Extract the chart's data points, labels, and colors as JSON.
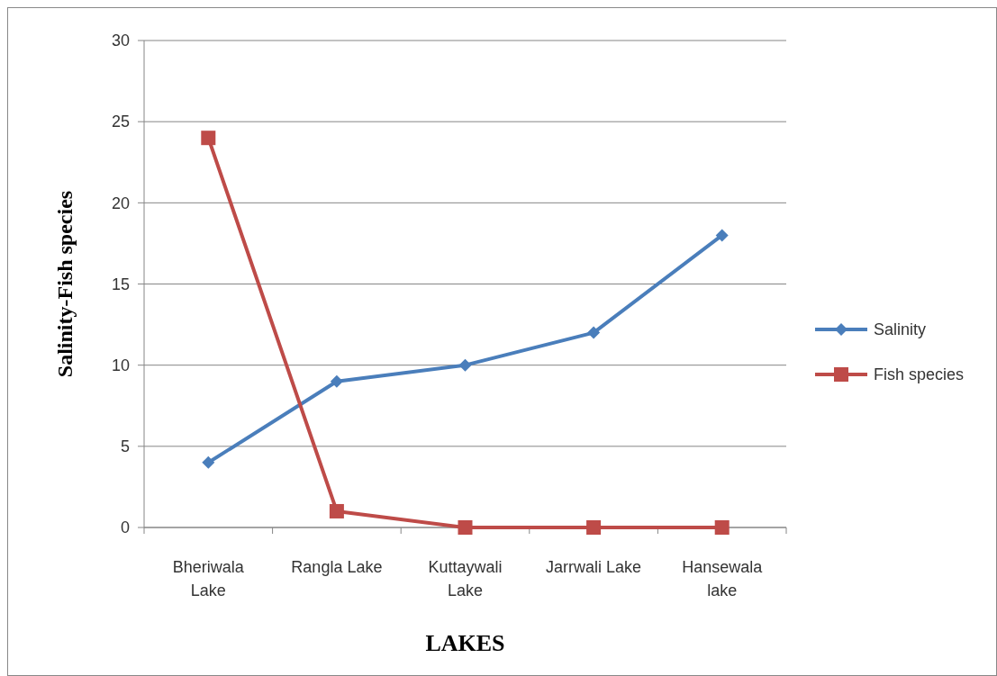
{
  "chart_data": {
    "type": "line",
    "xlabel": "LAKES",
    "ylabel": "Salinity-Fish species",
    "categories": [
      "Bheriwala Lake",
      "Rangla Lake",
      "Kuttaywali Lake",
      "Jarrwali Lake",
      "Hansewala lake"
    ],
    "series": [
      {
        "name": "Salinity",
        "color": "#4a7ebb",
        "marker": "diamond",
        "values": [
          4,
          9,
          10,
          12,
          18
        ]
      },
      {
        "name": "Fish species",
        "color": "#be4b48",
        "marker": "square",
        "values": [
          24,
          1,
          0,
          0,
          0
        ]
      }
    ],
    "ylim": [
      0,
      30
    ],
    "yticks": [
      0,
      5,
      10,
      15,
      20,
      25,
      30
    ],
    "grid": "y",
    "legend": "right"
  }
}
